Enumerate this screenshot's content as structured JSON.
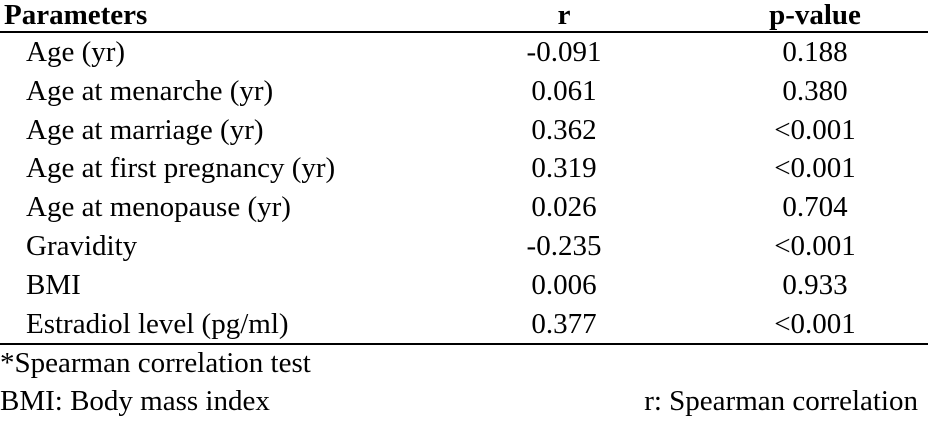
{
  "table": {
    "headers": {
      "parameter": "Parameters",
      "r": "r",
      "p_value": "p-value"
    },
    "rows": [
      {
        "parameter": "Age (yr)",
        "r": "-0.091",
        "p_value": "0.188"
      },
      {
        "parameter": "Age at menarche (yr)",
        "r": "0.061",
        "p_value": "0.380"
      },
      {
        "parameter": "Age at marriage (yr)",
        "r": "0.362",
        "p_value": "<0.001"
      },
      {
        "parameter": "Age at first pregnancy (yr)",
        "r": "0.319",
        "p_value": "<0.001"
      },
      {
        "parameter": "Age at menopause (yr)",
        "r": "0.026",
        "p_value": "0.704"
      },
      {
        "parameter": "Gravidity",
        "r": "-0.235",
        "p_value": "<0.001"
      },
      {
        "parameter": "BMI",
        "r": "0.006",
        "p_value": "0.933"
      },
      {
        "parameter": "Estradiol level (pg/ml)",
        "r": "0.377",
        "p_value": "<0.001"
      }
    ]
  },
  "footnotes": {
    "test": "*Spearman correlation test",
    "bmi_abbrev": "BMI: Body mass index",
    "r_abbrev": "r: Spearman correlation"
  }
}
